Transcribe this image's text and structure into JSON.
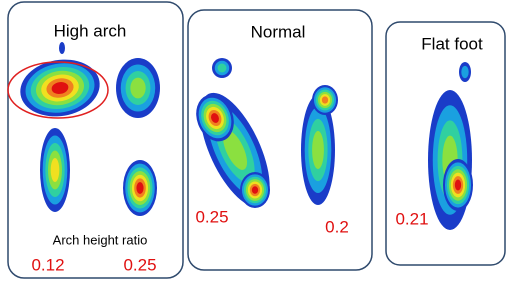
{
  "panels": [
    {
      "title": "High arch",
      "caption": "Arch height ratio",
      "values": [
        "0.12",
        "0.25"
      ]
    },
    {
      "title": "Normal",
      "values": [
        "0.25",
        "0.2"
      ]
    },
    {
      "title": "Flat foot",
      "values": [
        "0.21"
      ]
    }
  ]
}
